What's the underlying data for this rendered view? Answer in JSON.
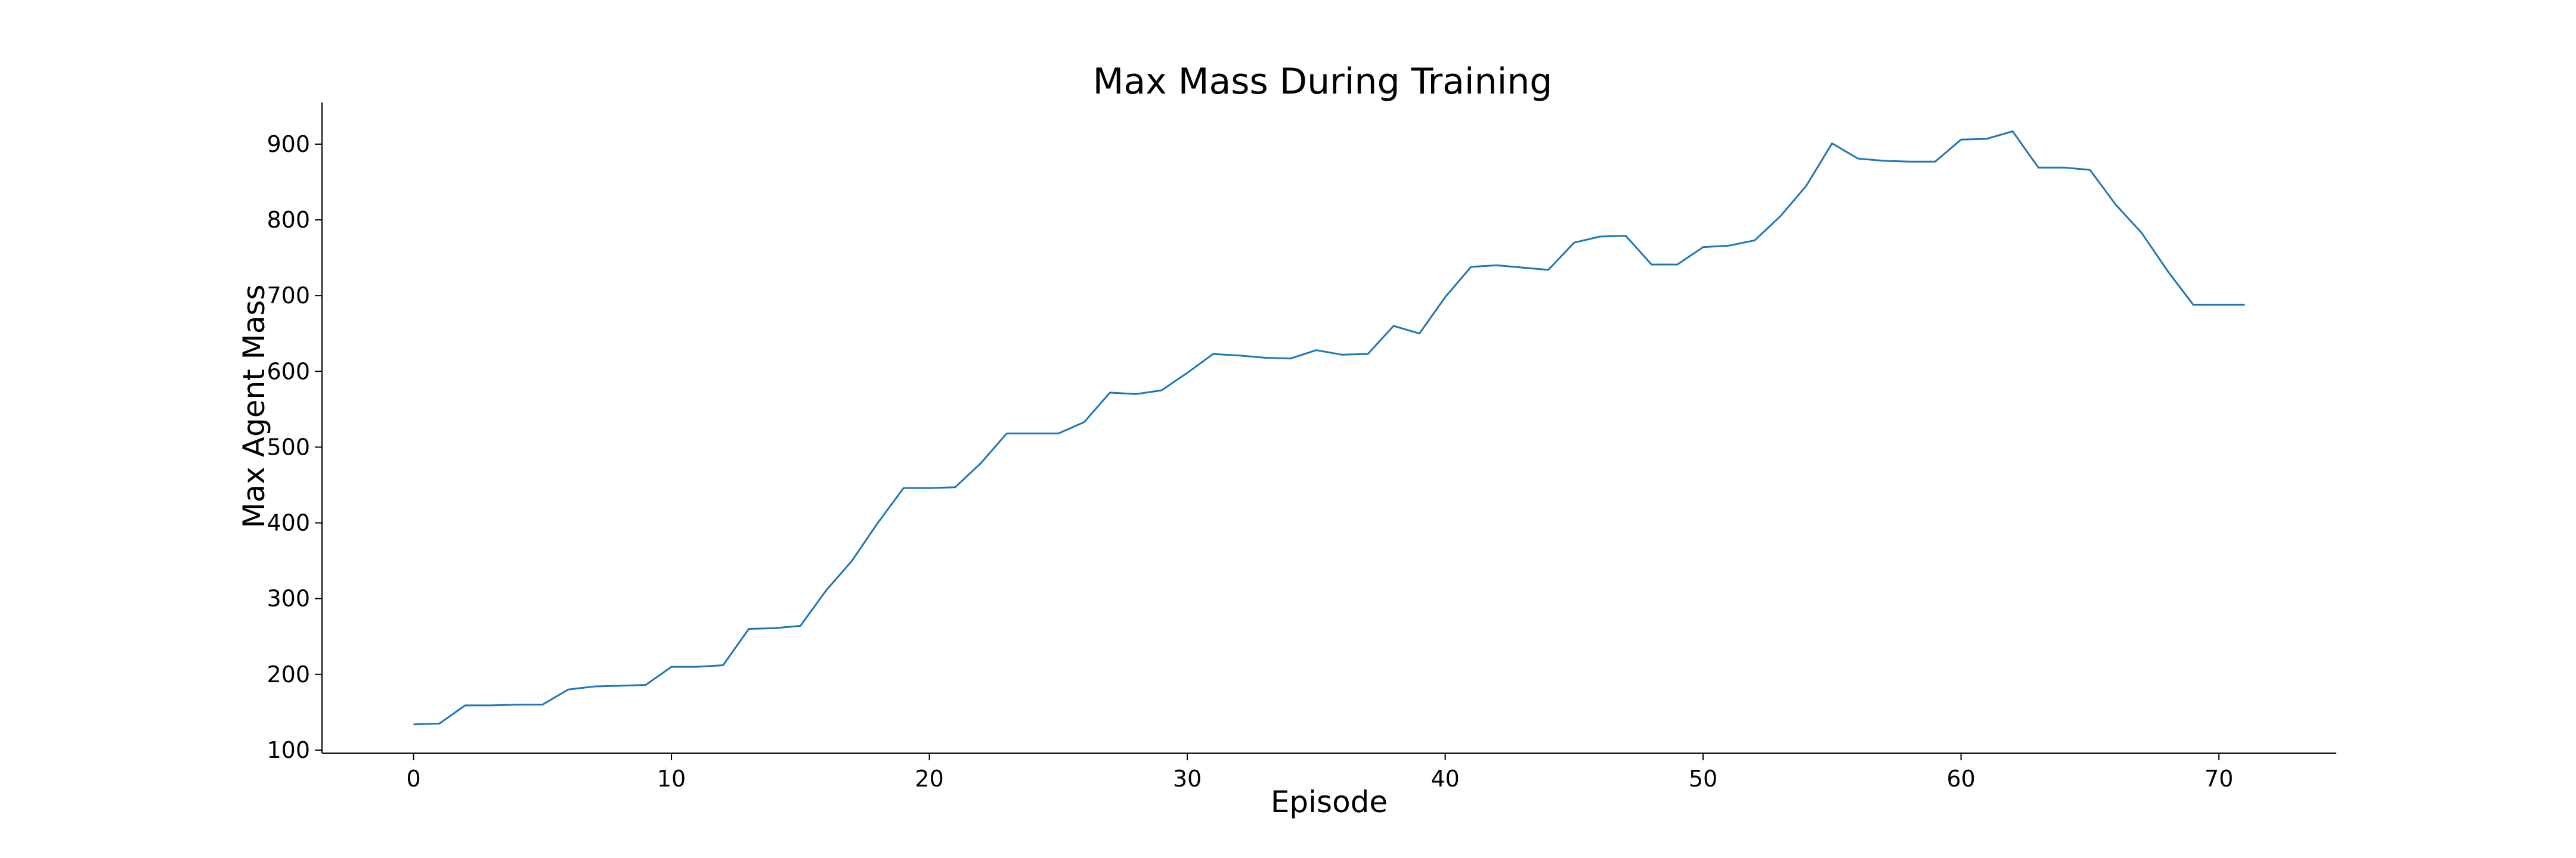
{
  "chart_data": {
    "type": "line",
    "title": "Max Mass During Training",
    "xlabel": "Episode",
    "ylabel": "Max Agent Mass",
    "xlim": [
      -3.55,
      74.55
    ],
    "ylim": [
      96,
      955
    ],
    "xticks": [
      0,
      10,
      20,
      30,
      40,
      50,
      60,
      70
    ],
    "yticks": [
      100,
      200,
      300,
      400,
      500,
      600,
      700,
      800,
      900
    ],
    "grid": false,
    "legend": "none",
    "series": [
      {
        "color": "#1f77b4",
        "x": [
          0,
          1,
          2,
          3,
          4,
          5,
          6,
          7,
          8,
          9,
          10,
          11,
          12,
          13,
          14,
          15,
          16,
          17,
          18,
          19,
          20,
          21,
          22,
          23,
          24,
          25,
          26,
          27,
          28,
          29,
          30,
          31,
          32,
          33,
          34,
          35,
          36,
          37,
          38,
          39,
          40,
          41,
          42,
          43,
          44,
          45,
          46,
          47,
          48,
          49,
          50,
          51,
          52,
          53,
          54,
          55,
          56,
          57,
          58,
          59,
          60,
          61,
          62,
          63,
          64,
          65,
          66,
          67,
          68,
          69,
          70,
          71
        ],
        "y": [
          134,
          135,
          159,
          159,
          160,
          160,
          180,
          184,
          185,
          186,
          210,
          210,
          212,
          260,
          261,
          264,
          311,
          350,
          400,
          446,
          446,
          447,
          479,
          518,
          518,
          518,
          533,
          572,
          570,
          575,
          598,
          623,
          621,
          618,
          617,
          628,
          622,
          623,
          660,
          650,
          698,
          738,
          740,
          737,
          734,
          770,
          778,
          779,
          741,
          741,
          764,
          766,
          773,
          805,
          845,
          901,
          881,
          878,
          877,
          877,
          906,
          907,
          917,
          869,
          869,
          866,
          820,
          783,
          733,
          688,
          688,
          688
        ]
      }
    ]
  }
}
